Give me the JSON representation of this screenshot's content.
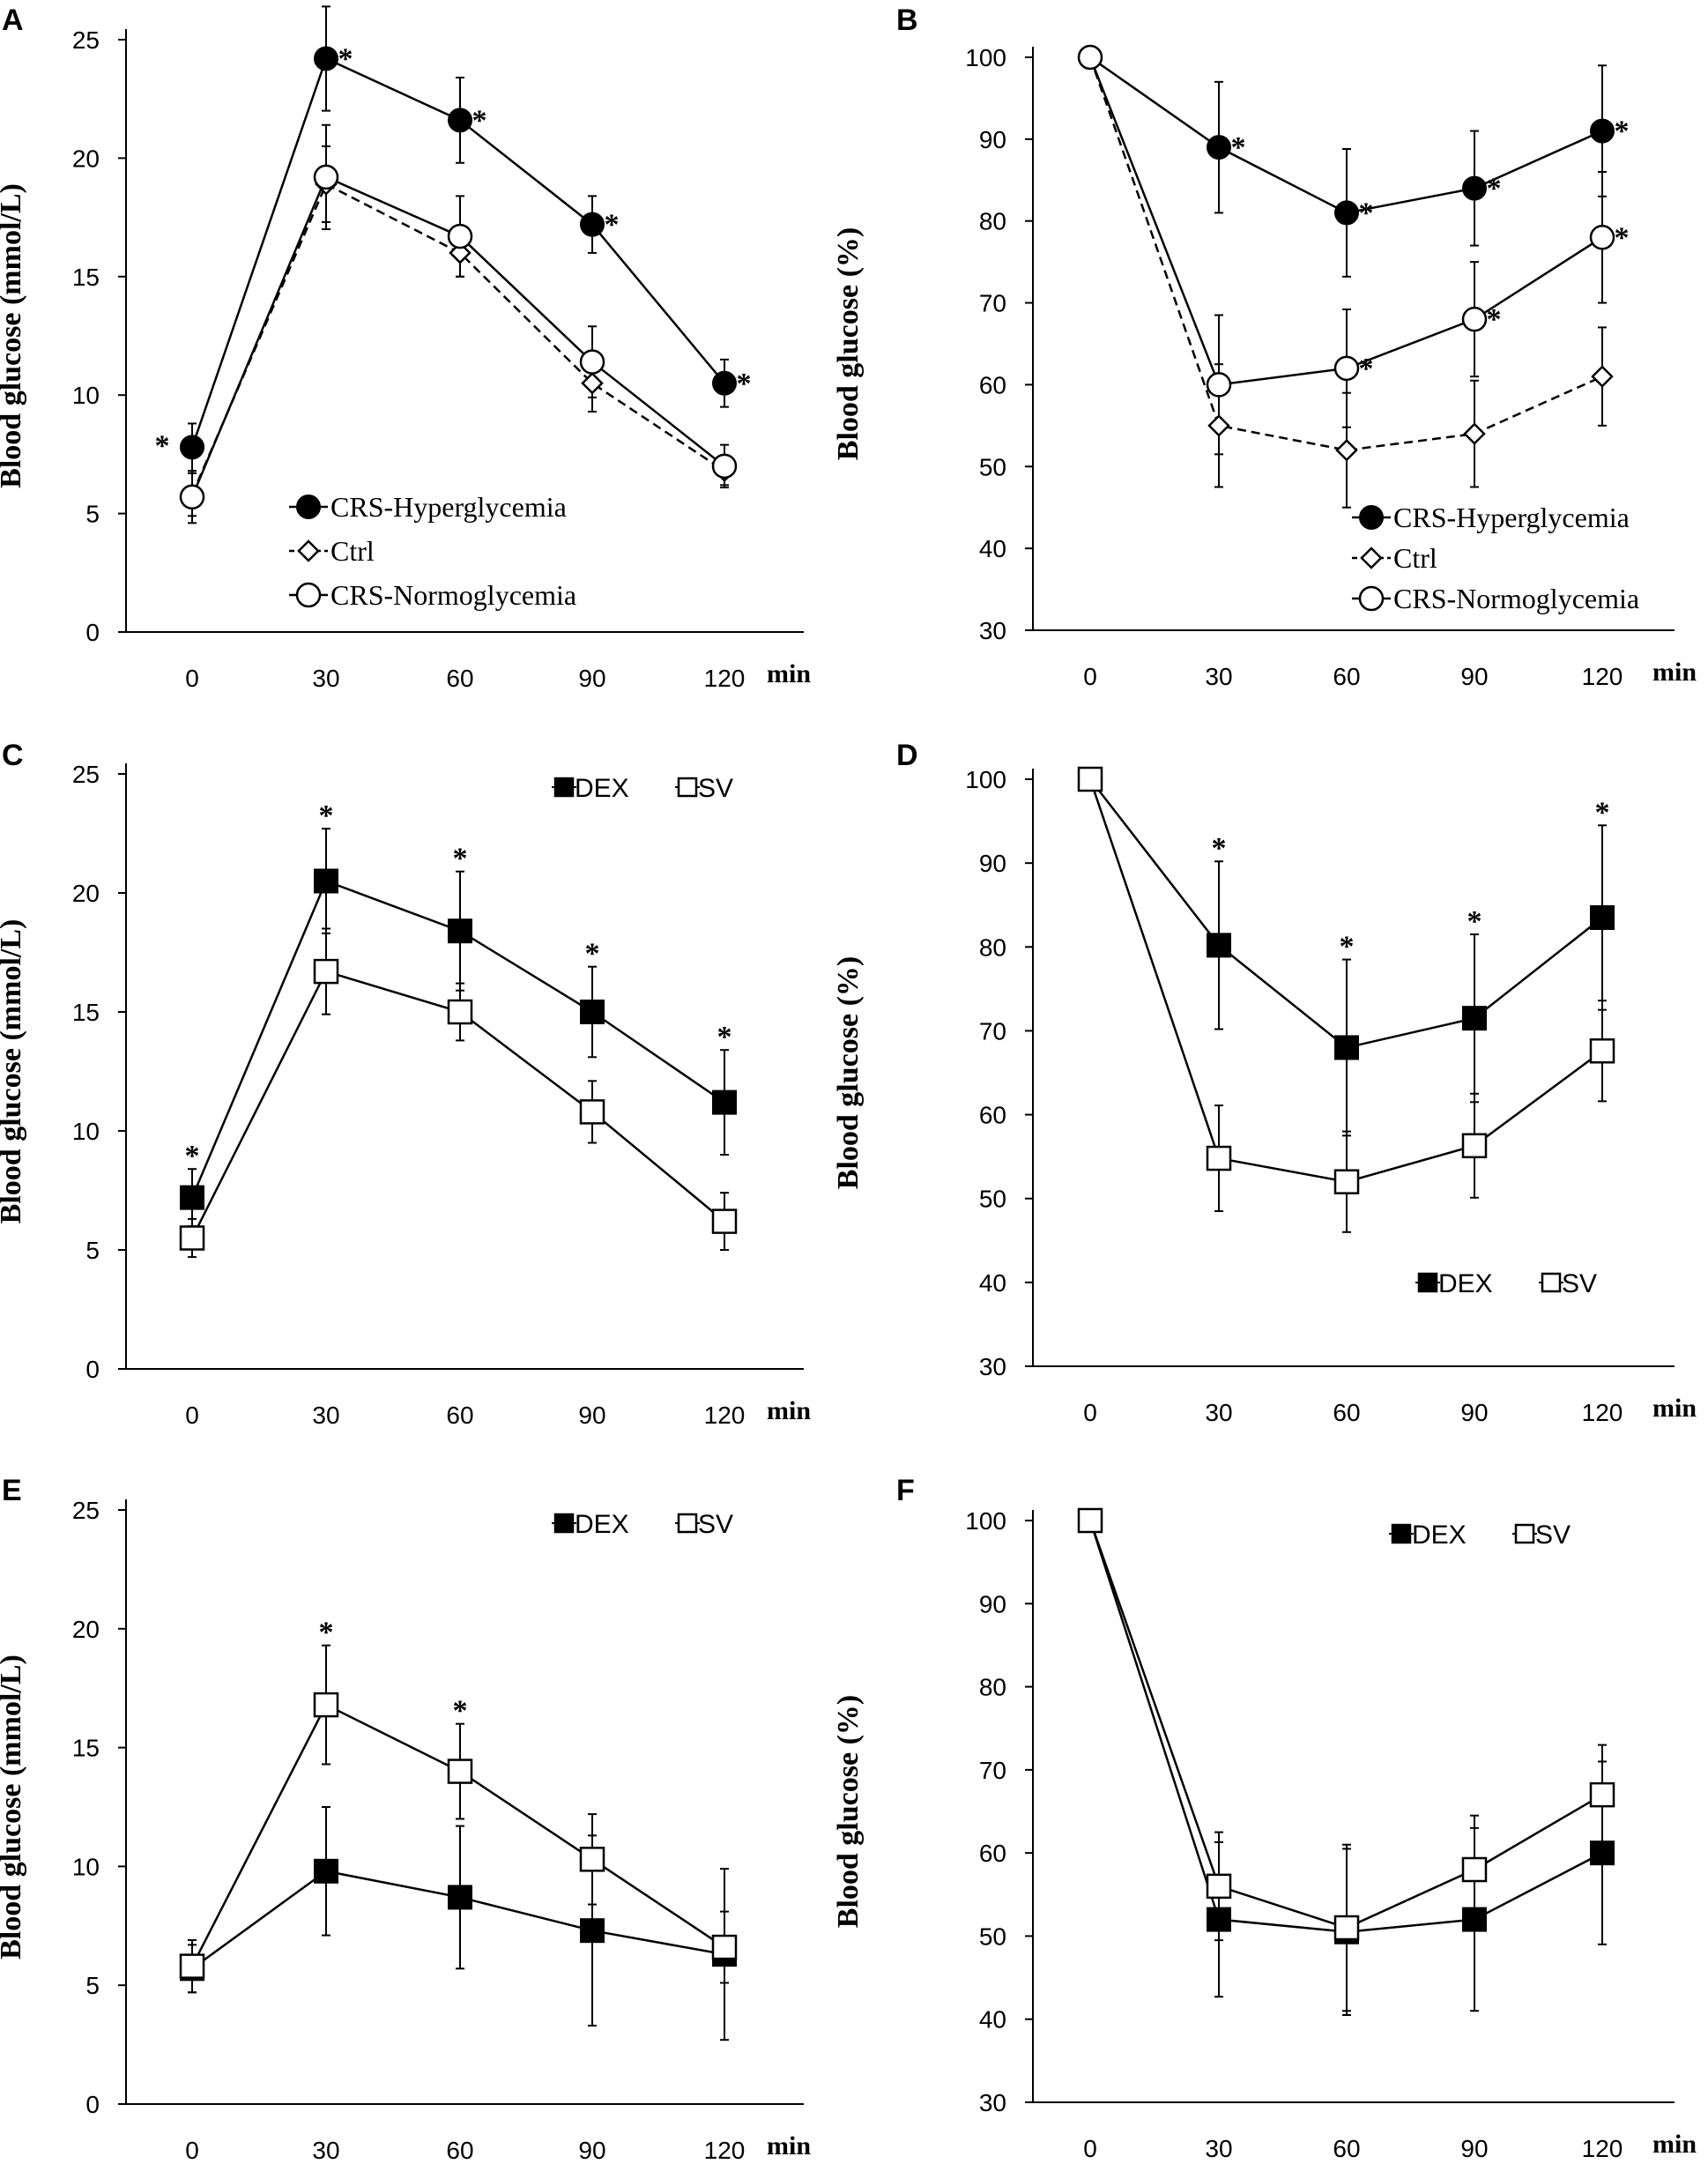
{
  "chart_data": [
    {
      "panel": "A",
      "type": "line",
      "ylabel": "Blood glucose (mmol/L)",
      "xunit": "min",
      "ylim": [
        0,
        25
      ],
      "yticks": [
        0,
        5,
        10,
        15,
        20,
        25
      ],
      "x": [
        0,
        30,
        60,
        90,
        120
      ],
      "xtick_labels": [
        "0",
        "30",
        "60",
        "90",
        "120"
      ],
      "legend_style": "serif",
      "series": [
        {
          "name": "CRS-Hyperglycemia",
          "marker": "filled-circle",
          "dashed": false,
          "values": [
            7.8,
            24.2,
            21.6,
            17.2,
            10.5
          ],
          "errors": [
            1.0,
            2.2,
            1.8,
            1.2,
            1.0
          ]
        },
        {
          "name": "Ctrl",
          "marker": "open-diamond",
          "dashed": true,
          "values": [
            5.8,
            18.9,
            16.0,
            10.5,
            6.8
          ],
          "errors": [
            0.9,
            1.6,
            1.0,
            1.2,
            0.6
          ]
        },
        {
          "name": "CRS-Normoglycemia",
          "marker": "open-circle",
          "dashed": false,
          "values": [
            5.7,
            19.2,
            16.7,
            11.4,
            7.0
          ],
          "errors": [
            1.1,
            2.2,
            1.7,
            1.5,
            0.9
          ]
        }
      ],
      "significance": [
        {
          "x": 0,
          "y": 7.8
        },
        {
          "x": 30,
          "y": 24.2
        },
        {
          "x": 60,
          "y": 21.6
        },
        {
          "x": 90,
          "y": 17.2
        },
        {
          "x": 120,
          "y": 10.5
        }
      ],
      "significance_label": "*"
    },
    {
      "panel": "B",
      "type": "line",
      "ylabel": "Blood glucose (%)",
      "xunit": "min",
      "ylim": [
        30,
        100
      ],
      "yticks": [
        30,
        40,
        50,
        60,
        70,
        80,
        90,
        100
      ],
      "x": [
        0,
        30,
        60,
        90,
        120
      ],
      "xtick_labels": [
        "0",
        "30",
        "60",
        "90",
        "120"
      ],
      "legend_style": "serif",
      "series": [
        {
          "name": "CRS-Hyperglycemia",
          "marker": "filled-circle",
          "dashed": false,
          "values": [
            100,
            89,
            81,
            84,
            91
          ],
          "errors": [
            0,
            8,
            7.8,
            7,
            8
          ]
        },
        {
          "name": "Ctrl",
          "marker": "open-diamond",
          "dashed": true,
          "values": [
            100,
            55,
            52,
            54,
            61
          ],
          "errors": [
            0,
            7.5,
            7,
            6.5,
            6
          ]
        },
        {
          "name": "CRS-Normoglycemia",
          "marker": "open-circle",
          "dashed": false,
          "values": [
            100,
            60,
            62,
            68,
            78
          ],
          "errors": [
            0,
            8.5,
            7.2,
            7,
            8
          ]
        }
      ],
      "significance": [
        {
          "x": 30,
          "y": 89
        },
        {
          "x": 60,
          "y": 81
        },
        {
          "x": 90,
          "y": 84
        },
        {
          "x": 120,
          "y": 91
        },
        {
          "x": 60,
          "y": 62
        },
        {
          "x": 90,
          "y": 68
        },
        {
          "x": 120,
          "y": 78
        }
      ],
      "significance_label": "*"
    },
    {
      "panel": "C",
      "type": "line",
      "ylabel": "Blood glucose (mmol/L)",
      "xunit": "min",
      "ylim": [
        0,
        25
      ],
      "yticks": [
        0,
        5,
        10,
        15,
        20,
        25
      ],
      "x": [
        0,
        30,
        60,
        90,
        120
      ],
      "xtick_labels": [
        "0",
        "30",
        "60",
        "90",
        "120"
      ],
      "legend_style": "sans",
      "legend_position": "top-right",
      "series": [
        {
          "name": "DEX",
          "marker": "filled-square",
          "dashed": false,
          "values": [
            7.2,
            20.5,
            18.4,
            15.0,
            11.2
          ],
          "errors": [
            1.2,
            2.2,
            2.5,
            1.9,
            2.2
          ]
        },
        {
          "name": "SV",
          "marker": "open-square",
          "dashed": false,
          "values": [
            5.5,
            16.7,
            15.0,
            10.8,
            6.2
          ],
          "errors": [
            0.8,
            1.8,
            1.2,
            1.3,
            1.2
          ]
        }
      ],
      "significance": [
        {
          "x": 0,
          "y": 8.4
        },
        {
          "x": 30,
          "y": 22.7
        },
        {
          "x": 60,
          "y": 20.9
        },
        {
          "x": 90,
          "y": 16.9
        },
        {
          "x": 120,
          "y": 13.4
        }
      ],
      "significance_label": "*"
    },
    {
      "panel": "D",
      "type": "line",
      "ylabel": "Blood glucose (%)",
      "xunit": "min",
      "ylim": [
        30,
        100
      ],
      "yticks": [
        30,
        40,
        50,
        60,
        70,
        80,
        90,
        100
      ],
      "x": [
        0,
        30,
        60,
        90,
        120
      ],
      "xtick_labels": [
        "0",
        "30",
        "60",
        "90",
        "120"
      ],
      "legend_style": "sans",
      "legend_position": "bottom-right",
      "series": [
        {
          "name": "DEX",
          "marker": "filled-square",
          "dashed": false,
          "values": [
            100,
            80.2,
            68,
            71.5,
            83.5
          ],
          "errors": [
            0,
            10,
            10.5,
            10,
            11
          ]
        },
        {
          "name": "SV",
          "marker": "open-square",
          "dashed": false,
          "values": [
            100,
            54.8,
            52,
            56.3,
            67.6
          ],
          "errors": [
            0,
            6.3,
            6,
            6.2,
            6
          ]
        }
      ],
      "significance": [
        {
          "x": 30,
          "y": 90.2
        },
        {
          "x": 60,
          "y": 78.5
        },
        {
          "x": 90,
          "y": 81.5
        },
        {
          "x": 120,
          "y": 94.5
        }
      ],
      "significance_label": "*"
    },
    {
      "panel": "E",
      "type": "line",
      "ylabel": "Blood glucose (mmol/L)",
      "xunit": "min",
      "ylim": [
        0,
        25
      ],
      "yticks": [
        0,
        5,
        10,
        15,
        20,
        25
      ],
      "x": [
        0,
        30,
        60,
        90,
        120
      ],
      "xtick_labels": [
        "0",
        "30",
        "60",
        "90",
        "120"
      ],
      "legend_style": "sans",
      "legend_position": "top-right",
      "series": [
        {
          "name": "DEX",
          "marker": "filled-square",
          "dashed": false,
          "values": [
            5.7,
            9.8,
            8.7,
            7.3,
            6.3
          ],
          "errors": [
            1.0,
            2.7,
            3.0,
            4.0,
            3.6
          ]
        },
        {
          "name": "SV",
          "marker": "open-square",
          "dashed": false,
          "values": [
            5.8,
            16.8,
            14.0,
            10.3,
            6.6
          ],
          "errors": [
            1.1,
            2.5,
            2.0,
            1.9,
            1.5
          ]
        }
      ],
      "significance": [
        {
          "x": 30,
          "y": 19.3
        },
        {
          "x": 60,
          "y": 16.0
        }
      ],
      "significance_label": "*"
    },
    {
      "panel": "F",
      "type": "line",
      "ylabel": "Blood glucose (%)",
      "xunit": "min",
      "ylim": [
        30,
        100
      ],
      "yticks": [
        30,
        40,
        50,
        60,
        70,
        80,
        90,
        100
      ],
      "x": [
        0,
        30,
        60,
        90,
        120
      ],
      "xtick_labels": [
        "0",
        "30",
        "60",
        "90",
        "120"
      ],
      "legend_style": "sans",
      "legend_position": "top-right",
      "series": [
        {
          "name": "DEX",
          "marker": "filled-square",
          "dashed": false,
          "values": [
            100,
            52,
            50.5,
            52,
            60
          ],
          "errors": [
            0,
            9.3,
            10,
            11,
            11
          ]
        },
        {
          "name": "SV",
          "marker": "open-square",
          "dashed": false,
          "values": [
            100,
            56,
            51,
            58,
            67
          ],
          "errors": [
            0,
            6.5,
            10,
            6.5,
            6
          ]
        }
      ],
      "significance": [],
      "significance_label": "*"
    }
  ]
}
